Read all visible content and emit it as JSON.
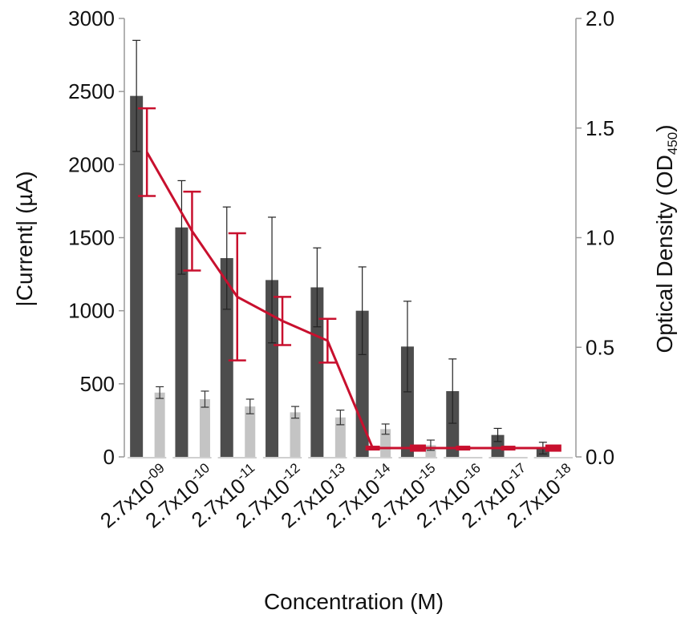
{
  "chart_data": {
    "type": "bar",
    "title": "",
    "xlabel": "Concentration (M)",
    "ylabel": "|Current| (µA)",
    "y2label_base": "Optical Density (OD",
    "y2label_sub": "450",
    "y2label_close": ")",
    "ylim": [
      0,
      3000
    ],
    "y2lim": [
      0,
      2.0
    ],
    "yticks": [
      "0",
      "500",
      "1000",
      "1500",
      "2000",
      "2500",
      "3000"
    ],
    "y2ticks": [
      "0.0",
      "0.5",
      "1.0",
      "1.5",
      "2.0"
    ],
    "categories": [
      {
        "base": "2.7x10",
        "exp": "-09"
      },
      {
        "base": "2.7x10",
        "exp": "-10"
      },
      {
        "base": "2.7x10",
        "exp": "-11"
      },
      {
        "base": "2.7x10",
        "exp": "-12"
      },
      {
        "base": "2.7x10",
        "exp": "-13"
      },
      {
        "base": "2.7x10",
        "exp": "-14"
      },
      {
        "base": "2.7x10",
        "exp": "-15"
      },
      {
        "base": "2.7x10",
        "exp": "-16"
      },
      {
        "base": "2.7x10",
        "exp": "-17"
      },
      {
        "base": "2.7x10",
        "exp": "-18"
      }
    ],
    "series": [
      {
        "type": "bar",
        "axis": "left",
        "color": "#4d4d4d",
        "values": [
          2470,
          1570,
          1360,
          1210,
          1160,
          1000,
          755,
          450,
          150,
          60
        ],
        "errors": [
          380,
          320,
          350,
          430,
          270,
          300,
          310,
          220,
          45,
          40
        ]
      },
      {
        "type": "bar",
        "axis": "left",
        "color": "#c4c4c4",
        "values": [
          440,
          395,
          345,
          305,
          270,
          190,
          80,
          0,
          0,
          0
        ],
        "errors": [
          40,
          55,
          50,
          40,
          50,
          35,
          35,
          0,
          0,
          0
        ]
      },
      {
        "type": "line",
        "axis": "right",
        "color": "#c8102e",
        "values": [
          1.39,
          1.03,
          0.73,
          0.62,
          0.53,
          0.04,
          0.04,
          0.04,
          0.04,
          0.04
        ],
        "errors": [
          0.2,
          0.18,
          0.29,
          0.11,
          0.1,
          0.0,
          0.015,
          0.0,
          0.0,
          0.015
        ]
      }
    ],
    "grid": false,
    "legend": "none"
  }
}
